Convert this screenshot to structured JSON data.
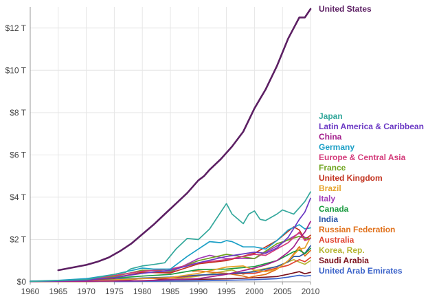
{
  "chart_data": {
    "type": "line",
    "title": "",
    "xlabel": "",
    "ylabel": "",
    "xlim": [
      1960,
      2010
    ],
    "ylim": [
      0,
      13
    ],
    "grid": true,
    "legend_placement": "right",
    "x_ticks": [
      1960,
      1965,
      1970,
      1975,
      1980,
      1985,
      1990,
      1995,
      2000,
      2005,
      2010
    ],
    "x_tick_labels": [
      "1960",
      "1965",
      "1970",
      "1975",
      "1980",
      "1985",
      "1990",
      "1995",
      "2000",
      "2005",
      "2010"
    ],
    "y_ticks": [
      0,
      2,
      4,
      6,
      8,
      10,
      12
    ],
    "y_tick_labels": [
      "$0",
      "$2 T",
      "$4 T",
      "$6 T",
      "$8 T",
      "$10 T",
      "$12 T"
    ],
    "series": [
      {
        "name": "United States",
        "color": "#5c1f63",
        "x": [
          1965,
          1968,
          1970,
          1972,
          1974,
          1976,
          1978,
          1980,
          1982,
          1984,
          1986,
          1988,
          1990,
          1991,
          1992,
          1994,
          1996,
          1998,
          2000,
          2002,
          2004,
          2006,
          2008,
          2009,
          2010
        ],
        "y": [
          0.55,
          0.7,
          0.8,
          0.95,
          1.15,
          1.45,
          1.8,
          2.25,
          2.7,
          3.2,
          3.7,
          4.2,
          4.8,
          5.0,
          5.3,
          5.8,
          6.4,
          7.1,
          8.2,
          9.1,
          10.2,
          11.5,
          12.5,
          12.5,
          12.9
        ]
      },
      {
        "name": "Japan",
        "color": "#34a89c",
        "x": [
          1960,
          1965,
          1970,
          1975,
          1977,
          1978,
          1980,
          1982,
          1984,
          1986,
          1988,
          1990,
          1992,
          1994,
          1995,
          1996,
          1998,
          1999,
          2000,
          2001,
          2002,
          2004,
          2005,
          2006,
          2007,
          2008,
          2009,
          2010
        ],
        "y": [
          0.02,
          0.06,
          0.1,
          0.35,
          0.45,
          0.62,
          0.75,
          0.82,
          0.9,
          1.55,
          2.05,
          2.0,
          2.5,
          3.3,
          3.7,
          3.2,
          2.75,
          3.2,
          3.35,
          2.95,
          2.9,
          3.2,
          3.4,
          3.3,
          3.2,
          3.5,
          3.8,
          4.25
        ]
      },
      {
        "name": "Latin America & Caribbean",
        "color": "#6b39c4",
        "x": [
          1960,
          1965,
          1970,
          1975,
          1980,
          1985,
          1988,
          1990,
          1995,
          2000,
          2002,
          2004,
          2006,
          2008,
          2009,
          2010
        ],
        "y": [
          0.02,
          0.04,
          0.08,
          0.2,
          0.4,
          0.55,
          0.75,
          0.9,
          1.2,
          1.4,
          1.35,
          1.6,
          2.1,
          2.95,
          3.3,
          3.95
        ]
      },
      {
        "name": "China",
        "color": "#a31f8c",
        "x": [
          1960,
          1970,
          1980,
          1985,
          1990,
          1995,
          2000,
          2002,
          2004,
          2006,
          2007,
          2008,
          2009,
          2010
        ],
        "y": [
          0.02,
          0.03,
          0.05,
          0.1,
          0.15,
          0.35,
          0.65,
          0.8,
          1.0,
          1.4,
          1.65,
          2.05,
          2.35,
          2.85
        ]
      },
      {
        "name": "Germany",
        "color": "#1b9fc6",
        "x": [
          1960,
          1965,
          1970,
          1975,
          1980,
          1982,
          1985,
          1988,
          1990,
          1992,
          1994,
          1995,
          1996,
          1998,
          2000,
          2002,
          2004,
          2006,
          2008,
          2009,
          2010
        ],
        "y": [
          0.03,
          0.07,
          0.15,
          0.35,
          0.65,
          0.6,
          0.6,
          1.2,
          1.55,
          1.9,
          1.85,
          1.95,
          1.9,
          1.65,
          1.65,
          1.55,
          1.95,
          2.45,
          2.7,
          2.5,
          2.55
        ]
      },
      {
        "name": "Europe & Central Asia",
        "color": "#d33a7a",
        "x": [
          1960,
          1965,
          1970,
          1975,
          1980,
          1985,
          1990,
          1995,
          2000,
          2002,
          2004,
          2006,
          2008,
          2009,
          2010
        ],
        "y": [
          0.02,
          0.05,
          0.1,
          0.3,
          0.5,
          0.6,
          0.9,
          1.05,
          1.3,
          1.25,
          1.55,
          1.85,
          2.35,
          1.95,
          2.05
        ]
      },
      {
        "name": "France",
        "color": "#6fa41f",
        "x": [
          1960,
          1965,
          1970,
          1975,
          1980,
          1985,
          1990,
          1995,
          2000,
          2004,
          2008,
          2009,
          2010
        ],
        "y": [
          0.02,
          0.04,
          0.1,
          0.25,
          0.55,
          0.5,
          1.0,
          1.3,
          1.1,
          1.8,
          2.15,
          2.05,
          2.05
        ]
      },
      {
        "name": "United Kingdom",
        "color": "#c2321e",
        "x": [
          1960,
          1965,
          1970,
          1975,
          1980,
          1985,
          1990,
          1995,
          2000,
          2004,
          2007,
          2008,
          2009,
          2010
        ],
        "y": [
          0.02,
          0.04,
          0.08,
          0.18,
          0.45,
          0.42,
          0.85,
          1.0,
          1.35,
          1.95,
          2.6,
          2.45,
          2.0,
          2.2
        ]
      },
      {
        "name": "Brazil",
        "color": "#e6a32a",
        "x": [
          1960,
          1970,
          1980,
          1985,
          1990,
          1995,
          1998,
          2000,
          2002,
          2004,
          2006,
          2008,
          2009,
          2010
        ],
        "y": [
          0.02,
          0.04,
          0.15,
          0.2,
          0.4,
          0.7,
          0.75,
          0.55,
          0.48,
          0.6,
          1.0,
          1.55,
          1.6,
          2.1
        ]
      },
      {
        "name": "Italy",
        "color": "#a13bb8",
        "x": [
          1960,
          1965,
          1970,
          1975,
          1980,
          1985,
          1990,
          1992,
          1995,
          2000,
          2004,
          2008,
          2009,
          2010
        ],
        "y": [
          0.02,
          0.04,
          0.1,
          0.2,
          0.45,
          0.45,
          1.1,
          1.25,
          1.1,
          1.1,
          1.7,
          2.3,
          2.1,
          2.05
        ]
      },
      {
        "name": "Canada",
        "color": "#199a3f",
        "x": [
          1960,
          1970,
          1980,
          1985,
          1990,
          1995,
          2000,
          2004,
          2007,
          2008,
          2009,
          2010
        ],
        "y": [
          0.02,
          0.08,
          0.27,
          0.35,
          0.58,
          0.6,
          0.72,
          1.0,
          1.42,
          1.5,
          1.33,
          1.58
        ]
      },
      {
        "name": "India",
        "color": "#2a57a8",
        "x": [
          1960,
          1970,
          1980,
          1985,
          1990,
          1995,
          2000,
          2004,
          2006,
          2007,
          2008,
          2009,
          2010
        ],
        "y": [
          0.03,
          0.06,
          0.18,
          0.22,
          0.32,
          0.37,
          0.47,
          0.72,
          0.95,
          1.2,
          1.2,
          1.35,
          1.7
        ]
      },
      {
        "name": "Russian Federation",
        "color": "#e0701a",
        "x": [
          1989,
          1990,
          1992,
          1995,
          1998,
          1999,
          2000,
          2002,
          2004,
          2006,
          2008,
          2009,
          2010
        ],
        "y": [
          0.5,
          0.52,
          0.46,
          0.4,
          0.27,
          0.2,
          0.26,
          0.35,
          0.59,
          0.99,
          1.66,
          1.22,
          1.48
        ]
      },
      {
        "name": "Australia",
        "color": "#e04431",
        "x": [
          1960,
          1970,
          1980,
          1985,
          1990,
          1995,
          2000,
          2004,
          2006,
          2008,
          2009,
          2010
        ],
        "y": [
          0.02,
          0.04,
          0.16,
          0.17,
          0.31,
          0.37,
          0.4,
          0.65,
          0.78,
          1.05,
          0.95,
          1.15
        ]
      },
      {
        "name": "Korea, Rep.",
        "color": "#b5b532",
        "x": [
          1960,
          1970,
          1980,
          1985,
          1990,
          1995,
          1996,
          1998,
          2000,
          2004,
          2007,
          2008,
          2009,
          2010
        ],
        "y": [
          0.01,
          0.02,
          0.06,
          0.1,
          0.27,
          0.52,
          0.56,
          0.36,
          0.53,
          0.72,
          1.05,
          0.93,
          0.83,
          1.0
        ]
      },
      {
        "name": "Saudi Arabia",
        "color": "#7a0f1a",
        "x": [
          1960,
          1970,
          1975,
          1980,
          1981,
          1985,
          1990,
          1995,
          2000,
          2004,
          2006,
          2008,
          2009,
          2010
        ],
        "y": [
          0.005,
          0.01,
          0.05,
          0.16,
          0.18,
          0.1,
          0.12,
          0.14,
          0.19,
          0.25,
          0.36,
          0.48,
          0.38,
          0.45
        ]
      },
      {
        "name": "United Arab Emirates",
        "color": "#3a62c9",
        "x": [
          1975,
          1980,
          1985,
          1990,
          1995,
          2000,
          2004,
          2006,
          2008,
          2009,
          2010
        ],
        "y": [
          0.01,
          0.03,
          0.04,
          0.05,
          0.07,
          0.1,
          0.15,
          0.22,
          0.31,
          0.27,
          0.3
        ]
      }
    ]
  }
}
